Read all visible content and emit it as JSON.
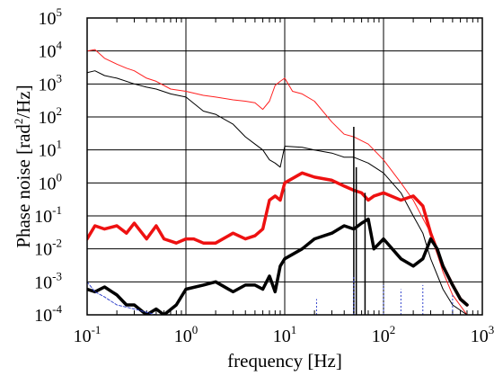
{
  "chart_data": {
    "type": "line",
    "xlabel": "frequency [Hz]",
    "ylabel": {
      "prefix": "Phase noise [rad",
      "sup": "2",
      "suffix": "/Hz]"
    },
    "xscale": "log",
    "yscale": "log",
    "xlim": [
      0.1,
      1000
    ],
    "ylim": [
      0.0001,
      100000
    ],
    "grid": true,
    "x_ticks": [
      {
        "value": 0.1,
        "base": "10",
        "exp": "-1"
      },
      {
        "value": 1,
        "base": "10",
        "exp": "0"
      },
      {
        "value": 10,
        "base": "10",
        "exp": "1"
      },
      {
        "value": 100,
        "base": "10",
        "exp": "2"
      },
      {
        "value": 1000,
        "base": "10",
        "exp": "3"
      }
    ],
    "y_ticks": [
      {
        "value": 0.0001,
        "base": "10",
        "exp": "-4"
      },
      {
        "value": 0.001,
        "base": "10",
        "exp": "-3"
      },
      {
        "value": 0.01,
        "base": "10",
        "exp": "-2"
      },
      {
        "value": 0.1,
        "base": "10",
        "exp": "-1"
      },
      {
        "value": 1,
        "base": "10",
        "exp": "0"
      },
      {
        "value": 10,
        "base": "10",
        "exp": "1"
      },
      {
        "value": 100,
        "base": "10",
        "exp": "2"
      },
      {
        "value": 1000,
        "base": "10",
        "exp": "3"
      },
      {
        "value": 10000,
        "base": "10",
        "exp": "4"
      },
      {
        "value": 100000,
        "base": "10",
        "exp": "5"
      }
    ],
    "series": [
      {
        "color": "#ff2020",
        "width": "thin",
        "x": [
          0.1,
          0.12,
          0.15,
          0.2,
          0.25,
          0.3,
          0.4,
          0.5,
          0.7,
          1,
          1.5,
          2,
          3,
          4,
          5,
          6,
          7,
          8,
          9,
          10,
          12,
          15,
          20,
          30,
          40,
          50,
          70,
          100,
          150,
          200,
          300,
          400,
          500,
          700
        ],
        "y": [
          10000,
          11000,
          6000,
          4000,
          3000,
          2500,
          1500,
          1200,
          700,
          600,
          450,
          400,
          330,
          300,
          270,
          170,
          300,
          900,
          1200,
          1500,
          600,
          500,
          300,
          70,
          30,
          25,
          15,
          5,
          1,
          0.3,
          0.03,
          0.002,
          0.0004,
          0.0001
        ]
      },
      {
        "color": "#000000",
        "width": "thin",
        "x": [
          0.1,
          0.12,
          0.15,
          0.2,
          0.3,
          0.4,
          0.5,
          0.7,
          1,
          1.5,
          2,
          3,
          4,
          5,
          6,
          7,
          8,
          9,
          10,
          15,
          20,
          30,
          40,
          50,
          70,
          100,
          150,
          200,
          250,
          300,
          400,
          500,
          700
        ],
        "y": [
          2200,
          2500,
          1800,
          1500,
          1000,
          800,
          700,
          500,
          400,
          150,
          120,
          60,
          25,
          15,
          10,
          5,
          4,
          3,
          13,
          12,
          10,
          8,
          6,
          6,
          4,
          2,
          0.5,
          0.1,
          0.03,
          0.005,
          0.0006,
          0.0002,
          0.0001
        ]
      },
      {
        "color": "#ee1111",
        "width": "thick",
        "x": [
          0.1,
          0.12,
          0.15,
          0.2,
          0.25,
          0.3,
          0.4,
          0.5,
          0.6,
          0.8,
          1,
          1.2,
          1.5,
          2,
          3,
          4,
          5,
          6,
          7,
          8,
          9,
          10,
          15,
          20,
          30,
          40,
          50,
          60,
          70,
          80,
          100,
          150,
          200,
          250,
          300,
          400,
          500,
          600,
          700
        ],
        "y": [
          0.02,
          0.05,
          0.04,
          0.05,
          0.03,
          0.06,
          0.02,
          0.05,
          0.02,
          0.015,
          0.02,
          0.02,
          0.015,
          0.015,
          0.03,
          0.02,
          0.025,
          0.04,
          0.3,
          0.4,
          0.3,
          1,
          2,
          1.5,
          1.2,
          0.8,
          0.6,
          0.5,
          0.3,
          0.4,
          0.5,
          0.3,
          0.4,
          0.2,
          0.03,
          0.003,
          0.0008,
          0.0003,
          0.0002
        ]
      },
      {
        "color": "#000000",
        "width": "thick",
        "x": [
          0.1,
          0.12,
          0.15,
          0.2,
          0.25,
          0.3,
          0.4,
          0.5,
          0.6,
          0.8,
          1,
          1.5,
          2,
          3,
          4,
          5,
          6,
          7,
          8,
          9,
          10,
          15,
          20,
          30,
          40,
          50,
          60,
          70,
          80,
          100,
          150,
          200,
          250,
          300,
          350,
          400,
          500,
          600,
          700
        ],
        "y": [
          0.0006,
          0.0005,
          0.0007,
          0.0004,
          0.0002,
          0.0002,
          0.0001,
          0.00015,
          0.0001,
          0.0002,
          0.0006,
          0.0008,
          0.001,
          0.0005,
          0.0008,
          0.0008,
          0.0006,
          0.0015,
          0.0005,
          0.003,
          0.005,
          0.01,
          0.02,
          0.03,
          0.05,
          0.04,
          0.06,
          0.08,
          0.01,
          0.02,
          0.005,
          0.003,
          0.005,
          0.02,
          0.01,
          0.003,
          0.0008,
          0.0003,
          0.0002
        ]
      },
      {
        "color": "#3344cc",
        "width": "dashed",
        "x": [
          0.1,
          0.12,
          0.15,
          0.2,
          0.3,
          0.5
        ],
        "y": [
          0.001,
          0.0005,
          0.00035,
          0.0002,
          0.00015,
          0.0001
        ]
      }
    ],
    "spikes": [
      {
        "x": 50,
        "y": 50,
        "color": "#000000"
      },
      {
        "x": 53,
        "y": 3,
        "color": "#000000"
      },
      {
        "x": 65,
        "y": 0.5,
        "color": "#000000"
      },
      {
        "x": 21,
        "y": 0.0003,
        "color": "#3344cc"
      },
      {
        "x": 50,
        "y": 0.0015,
        "color": "#3344cc"
      },
      {
        "x": 100,
        "y": 0.0008,
        "color": "#3344cc"
      },
      {
        "x": 150,
        "y": 0.0006,
        "color": "#3344cc"
      },
      {
        "x": 250,
        "y": 0.0008,
        "color": "#3344cc"
      },
      {
        "x": 500,
        "y": 0.0004,
        "color": "#3344cc"
      }
    ]
  }
}
